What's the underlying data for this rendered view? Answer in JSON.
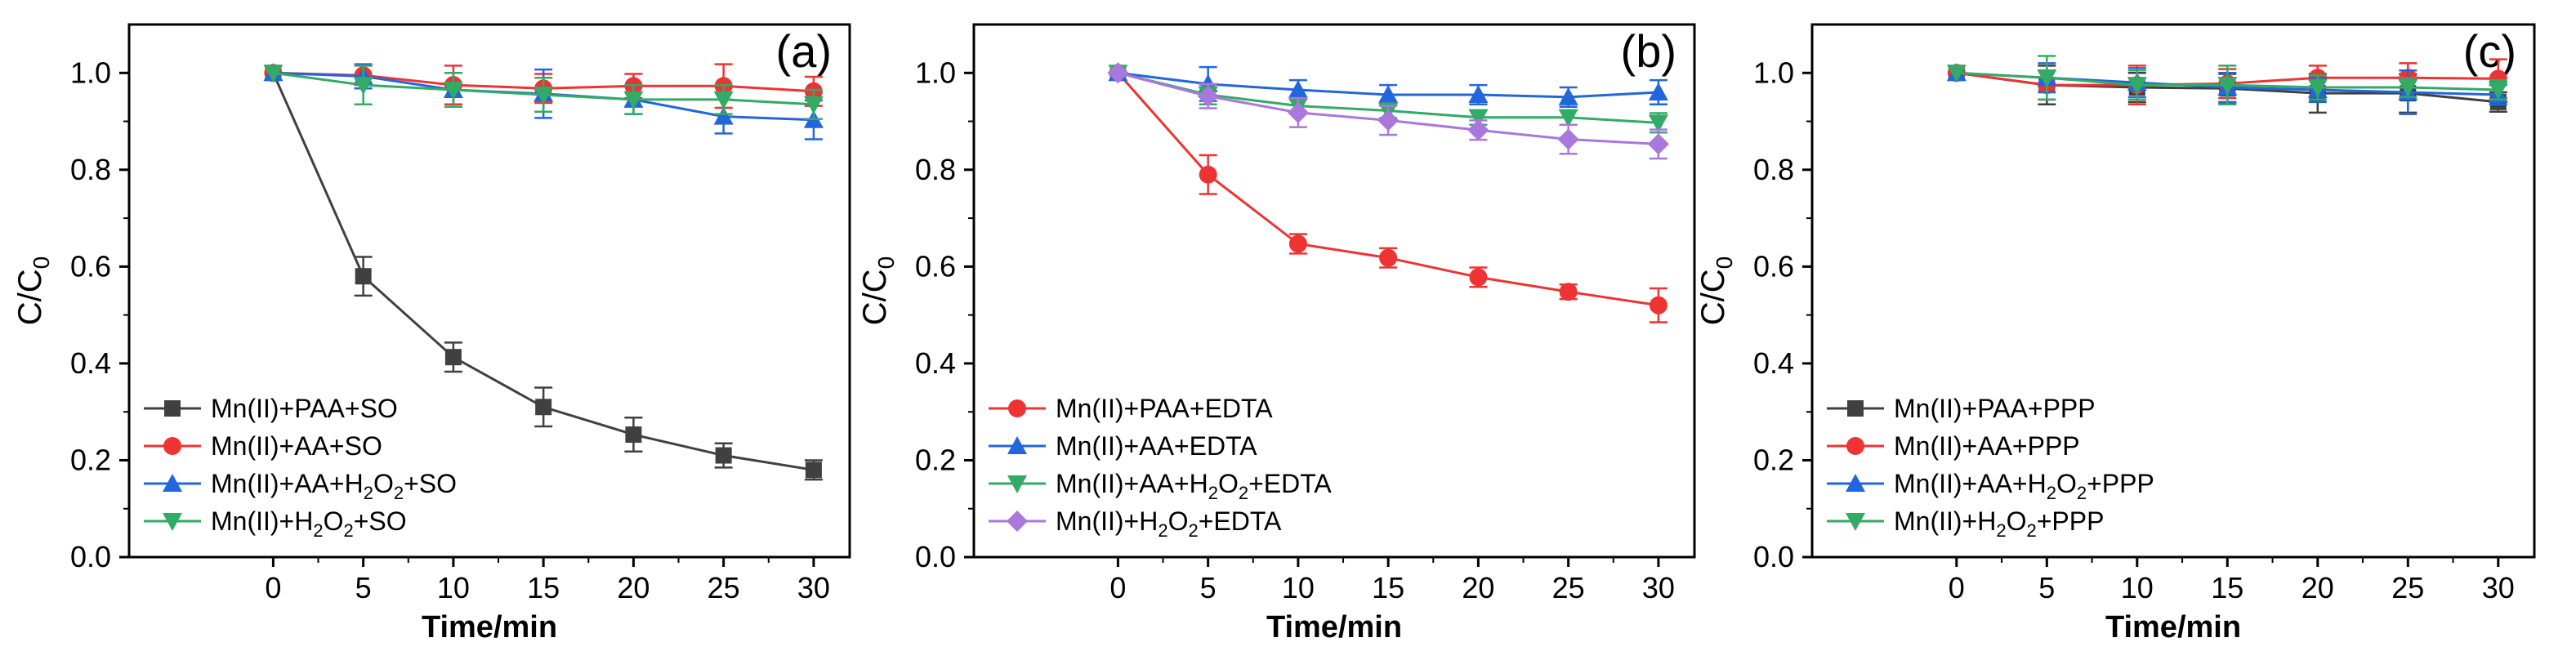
{
  "colors": {
    "black": "#404040",
    "red": "#ee3333",
    "blue": "#2266dd",
    "green": "#33aa66",
    "purple": "#aa77dd"
  },
  "chart_data": [
    {
      "type": "line",
      "panel_label": "(a)",
      "xlabel": "Time/min",
      "ylabel": "C/C0",
      "ylabel_main": "C/C",
      "ylabel_sub": "0",
      "x": [
        0,
        5,
        10,
        15,
        20,
        25,
        30
      ],
      "xlim": [
        -8,
        32
      ],
      "ylim": [
        0,
        1.1
      ],
      "xticks": [
        "0",
        "5",
        "10",
        "15",
        "20",
        "25",
        "30"
      ],
      "yticks": [
        "0.0",
        "0.2",
        "0.4",
        "0.6",
        "0.8",
        "1.0"
      ],
      "legend_position": "bottom-left",
      "series": [
        {
          "name": "Mn(II)+PAA+SO",
          "label_parts": [
            "Mn(II)+PAA+SO"
          ],
          "color": "#404040",
          "marker": "square",
          "values": [
            1.0,
            0.58,
            0.413,
            0.31,
            0.253,
            0.21,
            0.18
          ],
          "errors": [
            0,
            0.04,
            0.03,
            0.04,
            0.035,
            0.025,
            0.02
          ]
        },
        {
          "name": "Mn(II)+AA+SO",
          "label_parts": [
            "Mn(II)+AA+SO"
          ],
          "color": "#ee3333",
          "marker": "circle",
          "values": [
            1.0,
            0.995,
            0.975,
            0.968,
            0.973,
            0.973,
            0.962
          ],
          "errors": [
            0,
            0.02,
            0.04,
            0.03,
            0.025,
            0.045,
            0.03
          ]
        },
        {
          "name": "Mn(II)+AA+H2O2+SO",
          "label_parts": [
            "Mn(II)+AA+H",
            "2",
            "O",
            "2",
            "+SO"
          ],
          "color": "#2266dd",
          "marker": "triangle-up",
          "values": [
            1.0,
            0.993,
            0.965,
            0.957,
            0.945,
            0.91,
            0.903
          ],
          "errors": [
            0,
            0.025,
            0.035,
            0.05,
            0.03,
            0.035,
            0.04
          ]
        },
        {
          "name": "Mn(II)+H2O2+SO",
          "label_parts": [
            "Mn(II)+H",
            "2",
            "O",
            "2",
            "+SO"
          ],
          "color": "#33aa66",
          "marker": "triangle-down",
          "values": [
            1.0,
            0.975,
            0.965,
            0.955,
            0.945,
            0.945,
            0.935
          ],
          "errors": [
            0,
            0.04,
            0.035,
            0.035,
            0.03,
            0.03,
            0.03
          ]
        }
      ]
    },
    {
      "type": "line",
      "panel_label": "(b)",
      "xlabel": "Time/min",
      "ylabel": "C/C0",
      "ylabel_main": "C/C",
      "ylabel_sub": "0",
      "x": [
        0,
        5,
        10,
        15,
        20,
        25,
        30
      ],
      "xlim": [
        -8,
        32
      ],
      "ylim": [
        0,
        1.1
      ],
      "xticks": [
        "0",
        "5",
        "10",
        "15",
        "20",
        "25",
        "30"
      ],
      "yticks": [
        "0.0",
        "0.2",
        "0.4",
        "0.6",
        "0.8",
        "1.0"
      ],
      "legend_position": "bottom-left",
      "series": [
        {
          "name": "Mn(II)+PAA+EDTA",
          "label_parts": [
            "Mn(II)+PAA+EDTA"
          ],
          "color": "#ee3333",
          "marker": "circle",
          "values": [
            1.0,
            0.79,
            0.647,
            0.618,
            0.578,
            0.548,
            0.52
          ],
          "errors": [
            0,
            0.04,
            0.02,
            0.02,
            0.02,
            0.015,
            0.035
          ]
        },
        {
          "name": "Mn(II)+AA+EDTA",
          "label_parts": [
            "Mn(II)+AA+EDTA"
          ],
          "color": "#2266dd",
          "marker": "triangle-up",
          "values": [
            1.0,
            0.977,
            0.965,
            0.955,
            0.955,
            0.95,
            0.96
          ],
          "errors": [
            0,
            0.035,
            0.02,
            0.02,
            0.02,
            0.02,
            0.025
          ]
        },
        {
          "name": "Mn(II)+AA+H2O2+EDTA",
          "label_parts": [
            "Mn(II)+AA+H",
            "2",
            "O",
            "2",
            "+EDTA"
          ],
          "color": "#33aa66",
          "marker": "triangle-down",
          "values": [
            1.0,
            0.955,
            0.932,
            0.922,
            0.908,
            0.908,
            0.897
          ],
          "errors": [
            0,
            0.02,
            0.015,
            0.015,
            0.015,
            0.015,
            0.02
          ]
        },
        {
          "name": "Mn(II)+H2O2+EDTA",
          "label_parts": [
            "Mn(II)+H",
            "2",
            "O",
            "2",
            "+EDTA"
          ],
          "color": "#aa77dd",
          "marker": "diamond",
          "values": [
            1.0,
            0.952,
            0.918,
            0.902,
            0.882,
            0.863,
            0.853
          ],
          "errors": [
            0,
            0.025,
            0.03,
            0.03,
            0.02,
            0.03,
            0.03
          ]
        }
      ]
    },
    {
      "type": "line",
      "panel_label": "(c)",
      "xlabel": "Time/min",
      "ylabel": "C/C0",
      "ylabel_main": "C/C",
      "ylabel_sub": "0",
      "x": [
        0,
        5,
        10,
        15,
        20,
        25,
        30
      ],
      "xlim": [
        -8,
        32
      ],
      "ylim": [
        0,
        1.1
      ],
      "xticks": [
        "0",
        "5",
        "10",
        "15",
        "20",
        "25",
        "30"
      ],
      "yticks": [
        "0.0",
        "0.2",
        "0.4",
        "0.6",
        "0.8",
        "1.0"
      ],
      "legend_position": "bottom-left",
      "series": [
        {
          "name": "Mn(II)+PAA+PPP",
          "label_parts": [
            "Mn(II)+PAA+PPP"
          ],
          "color": "#404040",
          "marker": "square",
          "values": [
            1.0,
            0.975,
            0.97,
            0.968,
            0.958,
            0.958,
            0.94
          ],
          "errors": [
            0,
            0.04,
            0.03,
            0.03,
            0.04,
            0.04,
            0.02
          ]
        },
        {
          "name": "Mn(II)+AA+PPP",
          "label_parts": [
            "Mn(II)+AA+PPP"
          ],
          "color": "#ee3333",
          "marker": "circle",
          "values": [
            1.0,
            0.975,
            0.975,
            0.978,
            0.99,
            0.99,
            0.988
          ],
          "errors": [
            0,
            0.03,
            0.04,
            0.03,
            0.025,
            0.03,
            0.04
          ]
        },
        {
          "name": "Mn(II)+AA+H2O2+PPP",
          "label_parts": [
            "Mn(II)+AA+H",
            "2",
            "O",
            "2",
            "+PPP"
          ],
          "color": "#2266dd",
          "marker": "triangle-up",
          "values": [
            1.0,
            0.99,
            0.98,
            0.97,
            0.965,
            0.96,
            0.955
          ],
          "errors": [
            0,
            0.03,
            0.03,
            0.03,
            0.025,
            0.045,
            0.02
          ]
        },
        {
          "name": "Mn(II)+H2O2+PPP",
          "label_parts": [
            "Mn(II)+H",
            "2",
            "O",
            "2",
            "+PPP"
          ],
          "color": "#33aa66",
          "marker": "triangle-down",
          "values": [
            1.0,
            0.99,
            0.975,
            0.975,
            0.97,
            0.97,
            0.965
          ],
          "errors": [
            0,
            0.045,
            0.03,
            0.04,
            0.025,
            0.02,
            0.02
          ]
        }
      ]
    }
  ]
}
